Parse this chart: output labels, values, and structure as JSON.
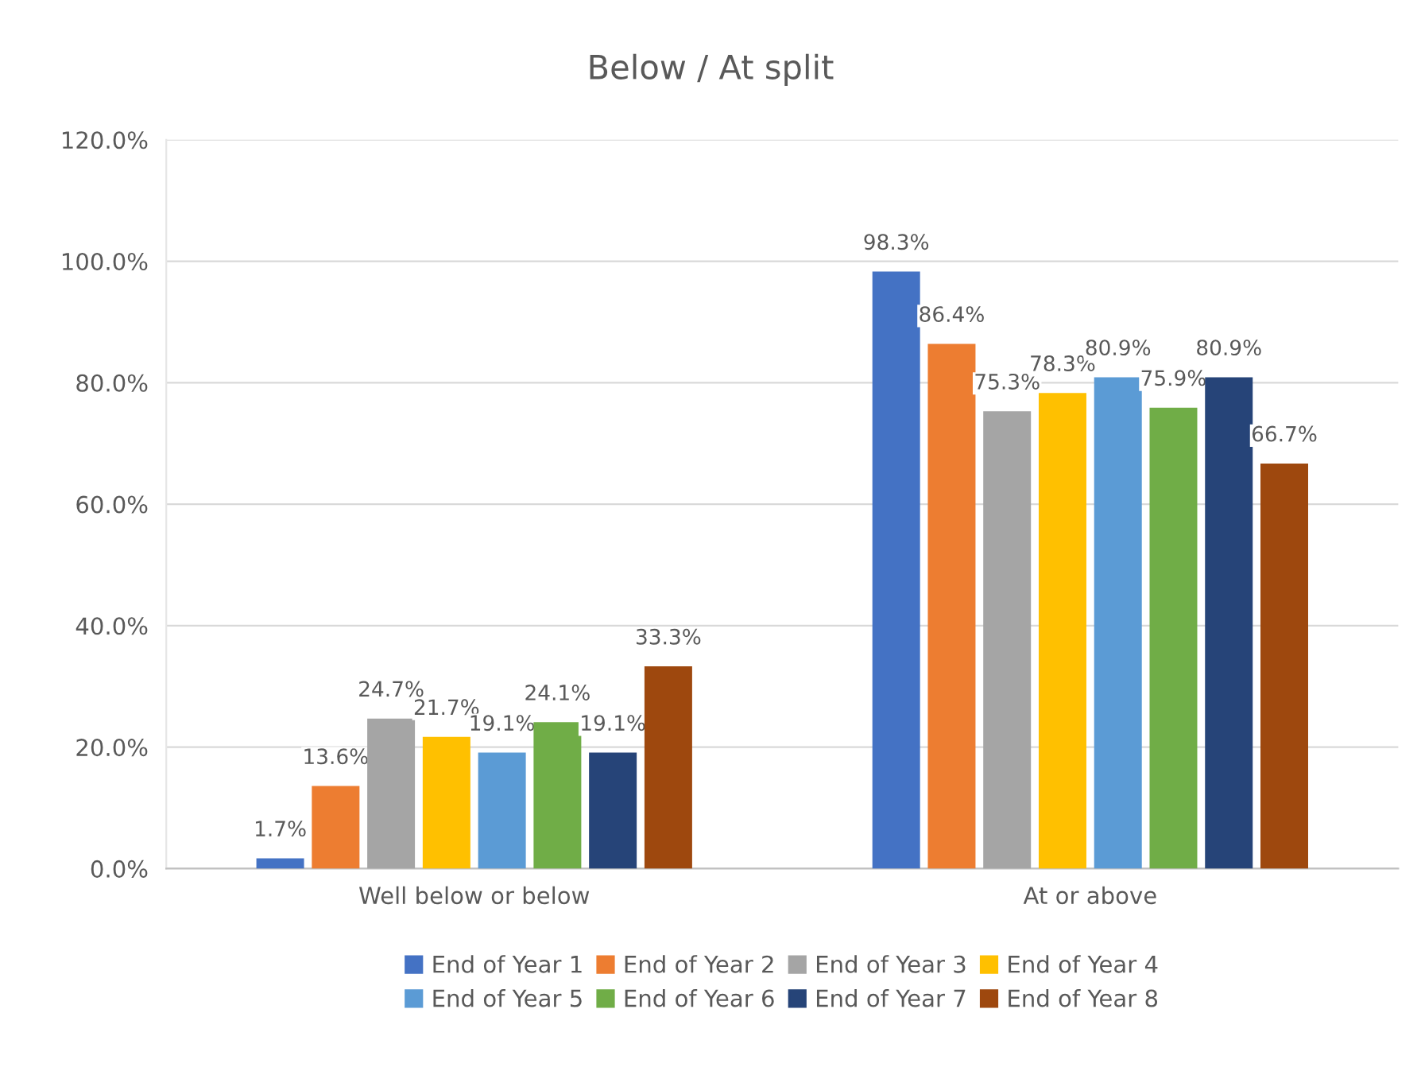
{
  "chart_data": {
    "type": "bar",
    "title": "Below / At split",
    "categories": [
      "Well below or below",
      "At or above"
    ],
    "series": [
      {
        "name": "End of Year 1",
        "color": "#4472c4",
        "values": [
          1.7,
          98.3
        ],
        "value_labels": [
          "1.7%",
          "98.3%"
        ]
      },
      {
        "name": "End of Year 2",
        "color": "#ed7d31",
        "values": [
          13.6,
          86.4
        ],
        "value_labels": [
          "13.6%",
          "86.4%"
        ]
      },
      {
        "name": "End of Year 3",
        "color": "#a5a5a5",
        "values": [
          24.7,
          75.3
        ],
        "value_labels": [
          "24.7%",
          "75.3%"
        ]
      },
      {
        "name": "End of Year 4",
        "color": "#ffc000",
        "values": [
          21.7,
          78.3
        ],
        "value_labels": [
          "21.7%",
          "78.3%"
        ]
      },
      {
        "name": "End of Year 5",
        "color": "#5b9bd5",
        "values": [
          19.1,
          80.9
        ],
        "value_labels": [
          "19.1%",
          "80.9%"
        ]
      },
      {
        "name": "End of Year 6",
        "color": "#70ad47",
        "values": [
          24.1,
          75.9
        ],
        "value_labels": [
          "24.1%",
          "75.9%"
        ]
      },
      {
        "name": "End of Year 7",
        "color": "#264478",
        "values": [
          19.1,
          80.9
        ],
        "value_labels": [
          "19.1%",
          "80.9%"
        ]
      },
      {
        "name": "End of Year 8",
        "color": "#9e480e",
        "values": [
          33.3,
          66.7
        ],
        "value_labels": [
          "33.3%",
          "66.7%"
        ]
      }
    ],
    "ylim": [
      0,
      120
    ],
    "yticks": [
      {
        "value": 0,
        "label": "0.0%"
      },
      {
        "value": 20,
        "label": "20.0%"
      },
      {
        "value": 40,
        "label": "40.0%"
      },
      {
        "value": 60,
        "label": "60.0%"
      },
      {
        "value": 80,
        "label": "80.0%"
      },
      {
        "value": 100,
        "label": "100.0%"
      },
      {
        "value": 120,
        "label": "120.0%"
      }
    ],
    "grid": "y",
    "legend": "bottom"
  }
}
